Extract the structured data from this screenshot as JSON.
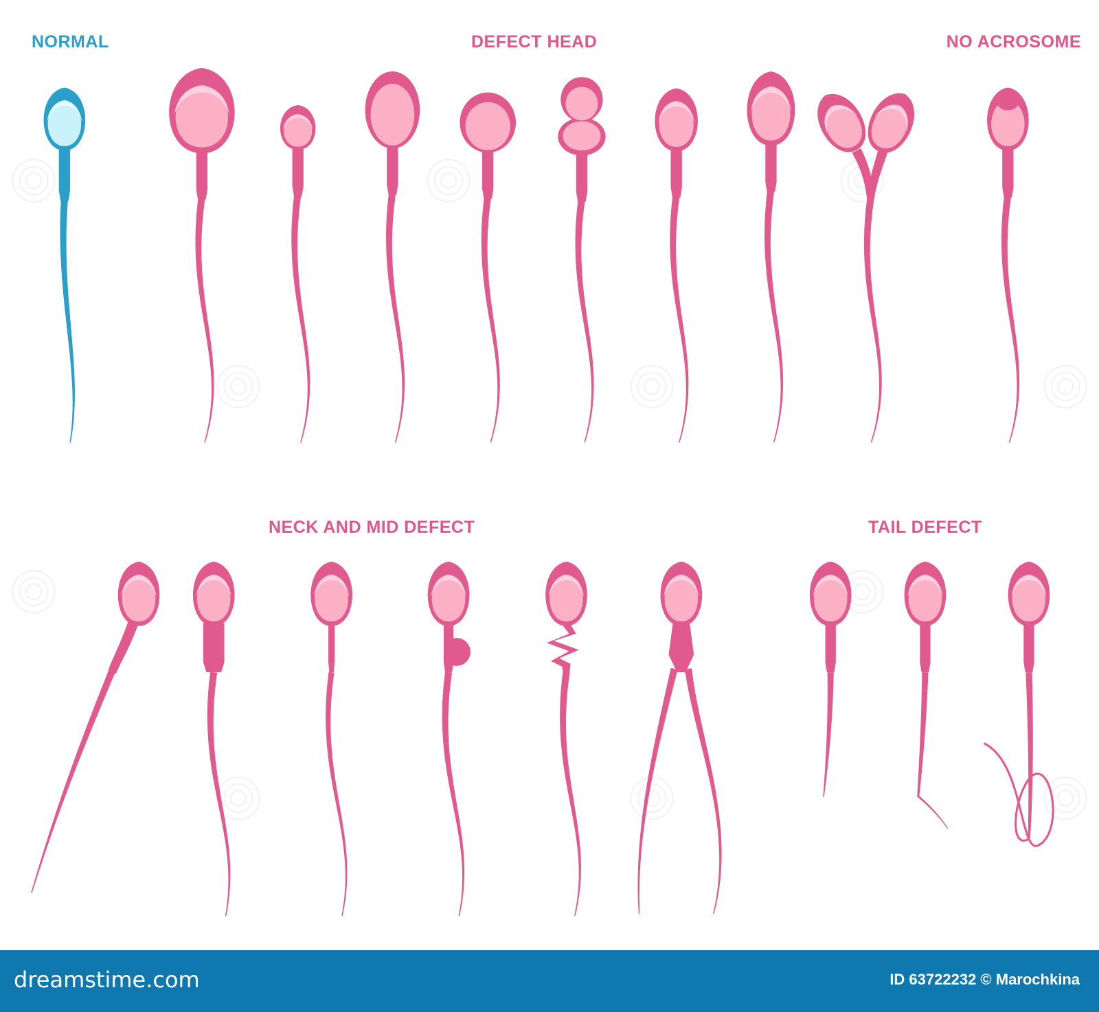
{
  "colors": {
    "normal_outline": "#2b9fc9",
    "normal_fill": "#c9f2fb",
    "normal_highlight": "#e6fbff",
    "defect_outline": "#e05a8e",
    "defect_fill": "#fbb0c6",
    "defect_highlight": "#fcd0de",
    "label_pink": "#e0558a",
    "label_blue": "#2b9fc9",
    "footer_bg": "#0f78ae",
    "footer_text": "#ffffff"
  },
  "labels": {
    "normal": "NORMAL",
    "defect_head": "DEFECT HEAD",
    "no_acrosome": "NO ACROSOME",
    "neck_mid_defect": "NECK AND MID DEFECT",
    "tail_defect": "TAIL DEFECT"
  },
  "footer": {
    "logo": "dreamstime.com",
    "credit": "ID 63722232 © Marochkina"
  },
  "icons": [
    "spiral-watermark-icon"
  ]
}
